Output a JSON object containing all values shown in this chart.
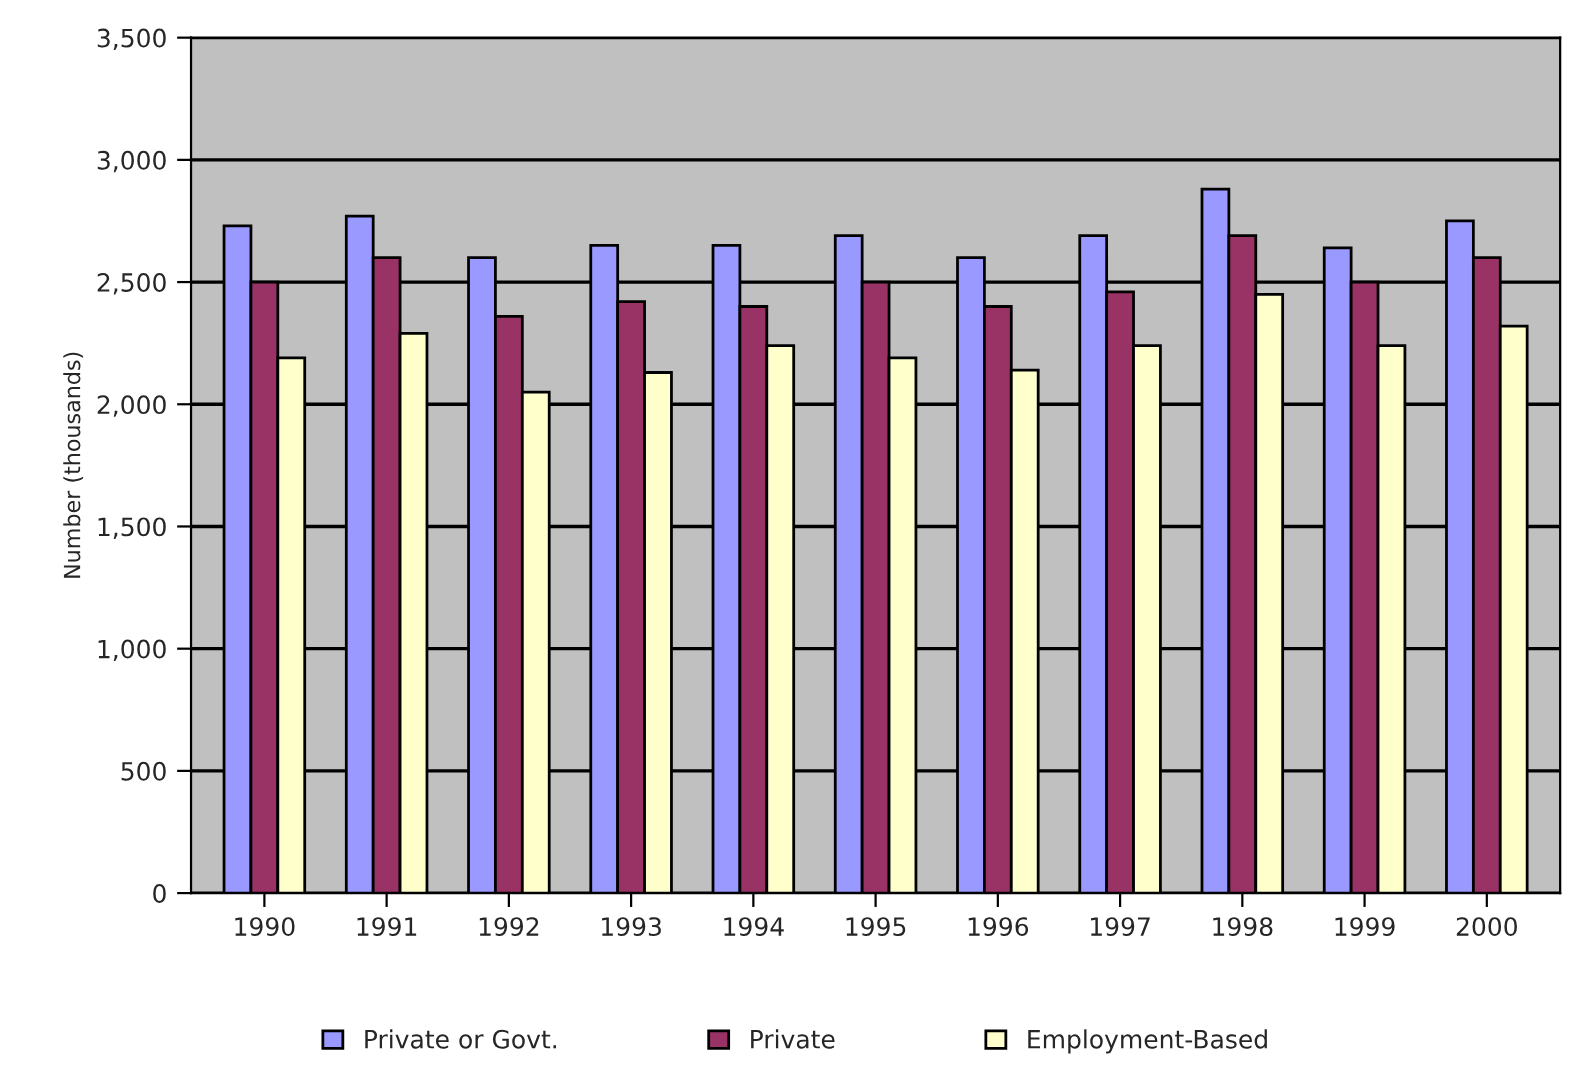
{
  "chart_data": {
    "type": "bar",
    "ylabel": "Number (thousands)",
    "categories": [
      "1990",
      "1991",
      "1992",
      "1993",
      "1994",
      "1995",
      "1996",
      "1997",
      "1998",
      "1999",
      "2000"
    ],
    "series": [
      {
        "name": "Private or Govt.",
        "color": "#9999ff",
        "values": [
          2730,
          2770,
          2600,
          2650,
          2650,
          2690,
          2600,
          2690,
          2880,
          2640,
          2750
        ]
      },
      {
        "name": "Private",
        "color": "#993366",
        "values": [
          2500,
          2600,
          2360,
          2420,
          2400,
          2500,
          2400,
          2460,
          2690,
          2500,
          2600
        ]
      },
      {
        "name": "Employment-Based",
        "color": "#ffffcc",
        "values": [
          2190,
          2290,
          2050,
          2130,
          2240,
          2190,
          2140,
          2240,
          2450,
          2240,
          2320
        ]
      }
    ],
    "ylim": [
      0,
      3500
    ],
    "yticks": [
      {
        "value": 0,
        "label": "0"
      },
      {
        "value": 500,
        "label": "500"
      },
      {
        "value": 1000,
        "label": "1,000"
      },
      {
        "value": 1500,
        "label": "1,500"
      },
      {
        "value": 2000,
        "label": "2,000"
      },
      {
        "value": 2500,
        "label": "2,500"
      },
      {
        "value": 3000,
        "label": "3,000"
      },
      {
        "value": 3500,
        "label": "3,500"
      }
    ],
    "grid": "y",
    "legend": "bottom"
  }
}
